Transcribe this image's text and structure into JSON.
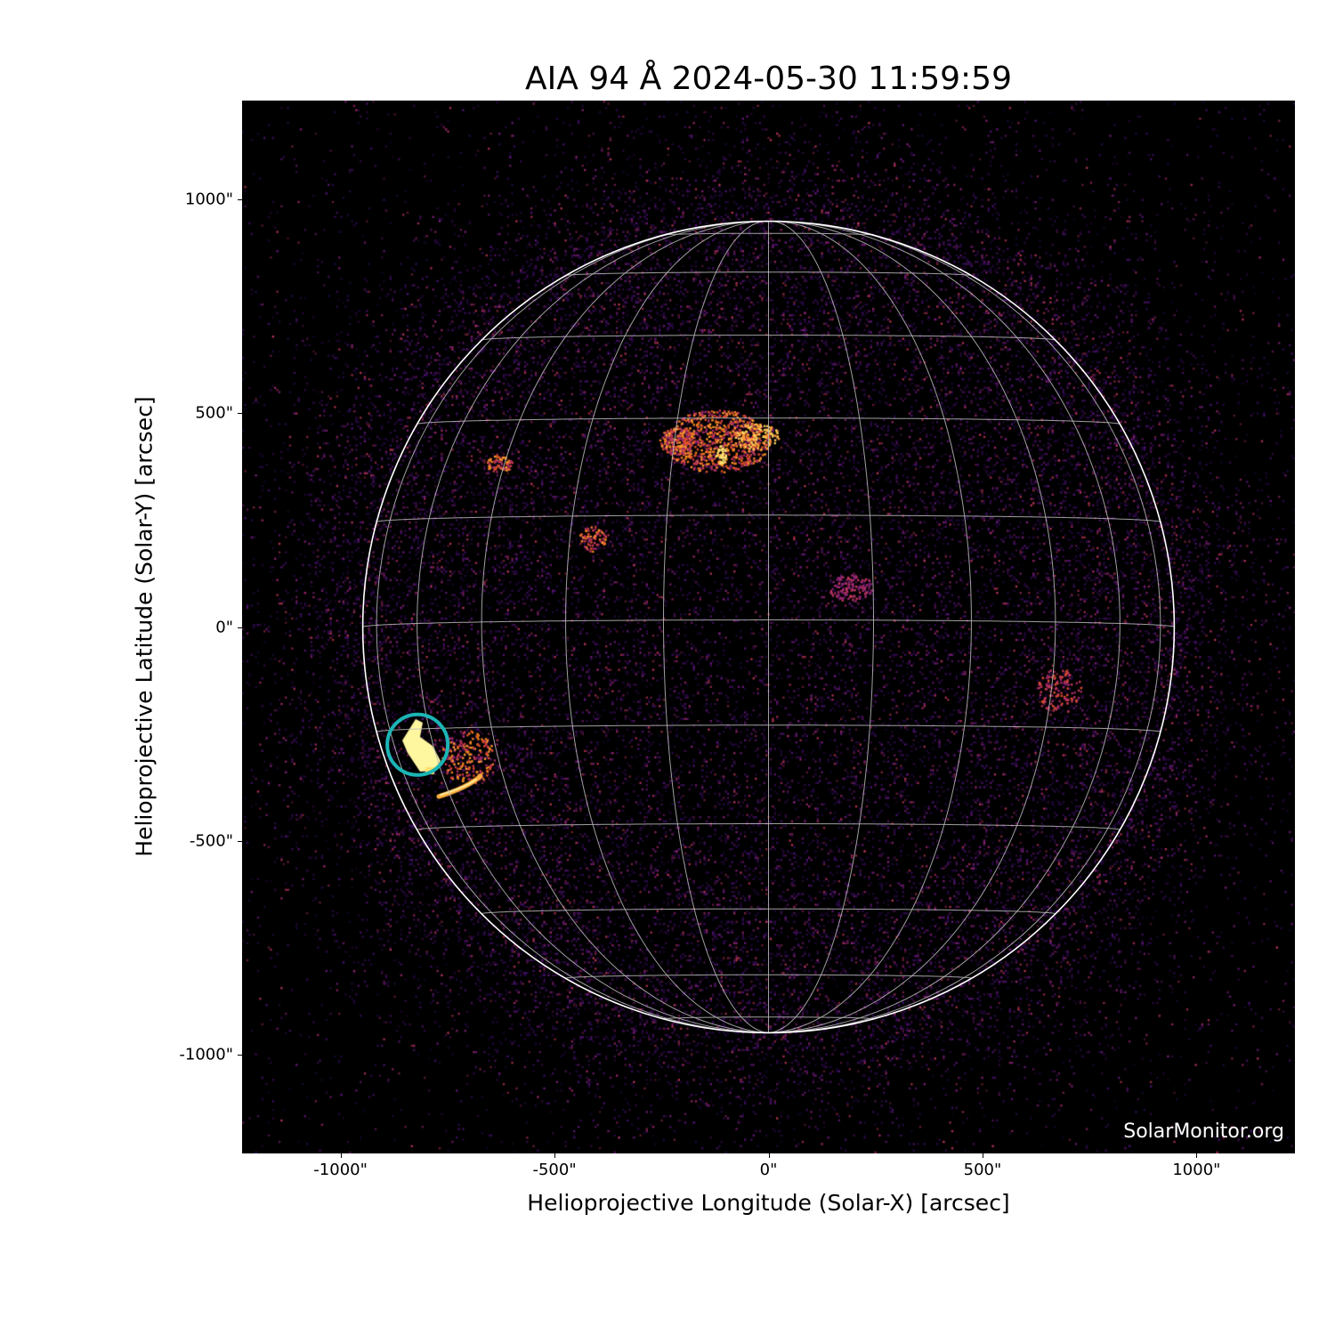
{
  "chart_data": {
    "type": "image",
    "title": "AIA 94 Å 2024-05-30 11:59:59",
    "xlabel": "Helioprojective Longitude (Solar-X) [arcsec]",
    "ylabel": "Helioprojective Latitude (Solar-Y) [arcsec]",
    "xlim": [
      -1230,
      1230
    ],
    "ylim": [
      -1230,
      1230
    ],
    "x_ticks": [
      {
        "value": -1000,
        "label": "-1000\""
      },
      {
        "value": -500,
        "label": "-500\""
      },
      {
        "value": 0,
        "label": "0\""
      },
      {
        "value": 500,
        "label": "500\""
      },
      {
        "value": 1000,
        "label": "1000\""
      }
    ],
    "y_ticks": [
      {
        "value": 1000,
        "label": "1000\""
      },
      {
        "value": 500,
        "label": "500\""
      },
      {
        "value": 0,
        "label": "0\""
      },
      {
        "value": -500,
        "label": "-500\""
      },
      {
        "value": -1000,
        "label": "-1000\""
      }
    ],
    "solar_radius_arcsec": 948,
    "grid": "heliographic lines every 15°",
    "colormap": "inferno-like (black-purple-orange-yellow)",
    "highlight_marker": {
      "type": "circle",
      "x": -820,
      "y": -275,
      "color": "#1cb5b5"
    },
    "limb_color": "#ffffff",
    "grid_color": "#bbbbbb"
  },
  "watermark": "SolarMonitor.org"
}
